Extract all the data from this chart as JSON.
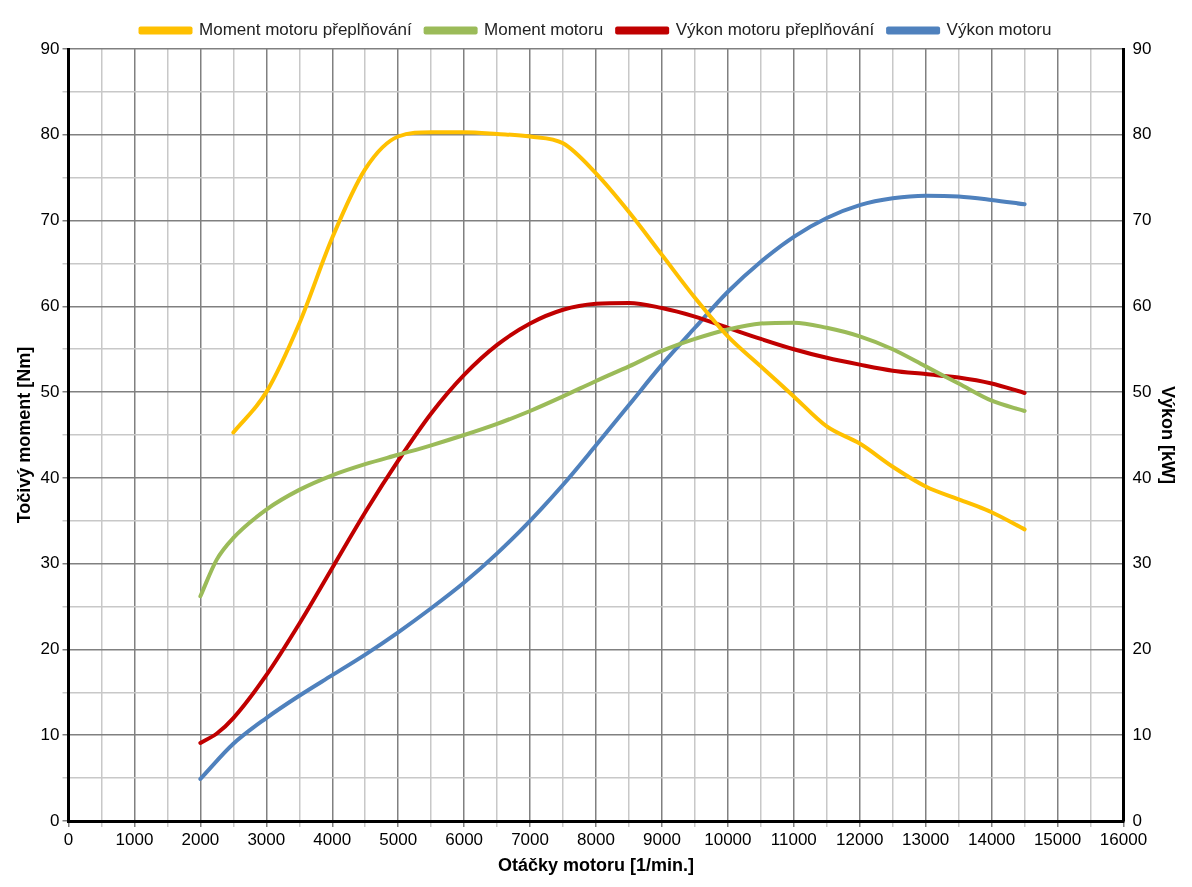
{
  "chart_data": {
    "type": "line",
    "xlabel": "Otáčky motoru [1/min.]",
    "ylabel": "Točivý moment [Nm]",
    "y2label": "Výkon [kW]",
    "xlim": [
      0,
      16000
    ],
    "xticks": [
      0,
      {
        "value": 500,
        "label": null
      },
      1000,
      {
        "value": 1500,
        "label": null
      },
      2000,
      {
        "value": 2500,
        "label": null
      },
      3000,
      {
        "value": 3500,
        "label": null
      },
      4000,
      {
        "value": 4500,
        "label": null
      },
      5000,
      {
        "value": 5500,
        "label": null
      },
      6000,
      {
        "value": 6500,
        "label": null
      },
      7000,
      {
        "value": 7500,
        "label": null
      },
      8000,
      {
        "value": 8500,
        "label": null
      },
      9000,
      {
        "value": 9500,
        "label": null
      },
      10000,
      {
        "value": 10500,
        "label": null
      },
      11000,
      {
        "value": 11500,
        "label": null
      },
      12000,
      {
        "value": 12500,
        "label": null
      },
      13000,
      {
        "value": 13500,
        "label": null
      },
      14000,
      {
        "value": 14500,
        "label": null
      },
      15000,
      {
        "value": 15500,
        "label": null
      },
      16000
    ],
    "ylim": [
      0,
      90
    ],
    "yticks": [
      0,
      {
        "value": 5,
        "label": null
      },
      10,
      {
        "value": 15,
        "label": null
      },
      20,
      {
        "value": 25,
        "label": null
      },
      30,
      {
        "value": 35,
        "label": null
      },
      40,
      {
        "value": 45,
        "label": null
      },
      50,
      {
        "value": 55,
        "label": null
      },
      60,
      {
        "value": 65,
        "label": null
      },
      70,
      {
        "value": 75,
        "label": null
      },
      80,
      {
        "value": 85,
        "label": null
      },
      90
    ],
    "y2lim": [
      0,
      90
    ],
    "y2ticks": [
      0,
      10,
      20,
      30,
      40,
      50,
      60,
      70,
      80,
      90
    ],
    "grid": true,
    "legend": "top",
    "marker": "none",
    "line_style": "solid",
    "series": [
      {
        "name": "Moment motoru přeplňování",
        "color": "#ffc000",
        "x": [
          2500,
          3000,
          3500,
          4000,
          4500,
          5000,
          5500,
          6000,
          6500,
          7000,
          7500,
          8000,
          8500,
          9000,
          9500,
          10000,
          10500,
          11000,
          11500,
          12000,
          12500,
          13000,
          13500,
          14000,
          14500
        ],
        "values": [
          45.3,
          50,
          58,
          68,
          76,
          79.8,
          80.3,
          80.3,
          80.1,
          79.8,
          79,
          75.5,
          71,
          66,
          61,
          56.5,
          53,
          49.5,
          46,
          44,
          41.3,
          39,
          37.5,
          36,
          34
        ]
      },
      {
        "name": "Moment motoru",
        "color": "#9bbb59",
        "x": [
          2000,
          2250,
          2500,
          3000,
          3500,
          4000,
          4500,
          5000,
          5500,
          6000,
          6500,
          7000,
          7500,
          8000,
          8500,
          9000,
          9500,
          10000,
          10500,
          11000,
          11500,
          12000,
          12500,
          13000,
          13500,
          14000,
          14500
        ],
        "values": [
          26.2,
          30.5,
          33,
          36.3,
          38.6,
          40.3,
          41.6,
          42.7,
          43.8,
          45,
          46.3,
          47.8,
          49.5,
          51.3,
          53,
          54.8,
          56.2,
          57.3,
          58,
          58.1,
          57.5,
          56.5,
          55,
          53,
          51,
          49,
          47.8
        ]
      },
      {
        "name": "Výkon motoru přeplňování",
        "color": "#c00000",
        "axis": "y2",
        "x": [
          2000,
          2250,
          2500,
          3000,
          3500,
          4000,
          4500,
          5000,
          5500,
          6000,
          6500,
          7000,
          7500,
          8000,
          8500,
          9000,
          9500,
          10000,
          10500,
          11000,
          11500,
          12000,
          12500,
          13000,
          13500,
          14000,
          14500
        ],
        "values": [
          9.1,
          10.2,
          12,
          17,
          23,
          29.5,
          36,
          42,
          47.5,
          52,
          55.5,
          58,
          59.6,
          60.3,
          60.4,
          59.8,
          58.8,
          57.5,
          56.2,
          55,
          54,
          53.2,
          52.5,
          52.1,
          51.7,
          51,
          49.9
        ]
      },
      {
        "name": "Výkon motoru",
        "color": "#4f81bd",
        "axis": "y2",
        "x": [
          2000,
          2500,
          3000,
          3500,
          4000,
          4500,
          5000,
          5500,
          6000,
          6500,
          7000,
          7500,
          8000,
          8500,
          9000,
          9500,
          10000,
          10500,
          11000,
          11500,
          12000,
          12500,
          13000,
          13500,
          14000,
          14500
        ],
        "values": [
          4.9,
          9,
          12,
          14.6,
          17,
          19.4,
          22,
          24.8,
          27.8,
          31.2,
          35,
          39.2,
          43.8,
          48.5,
          53.2,
          57.5,
          61.7,
          65.2,
          68.1,
          70.3,
          71.8,
          72.6,
          72.9,
          72.8,
          72.4,
          71.9
        ]
      }
    ]
  }
}
